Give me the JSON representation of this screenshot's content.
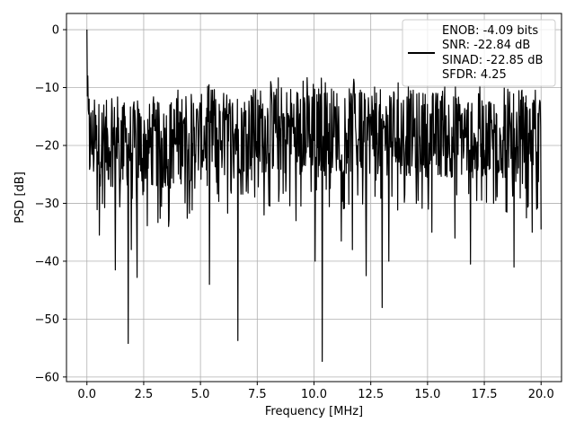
{
  "chart_data": {
    "type": "line",
    "title": "",
    "xlabel": "Frequency [MHz]",
    "ylabel": "PSD [dB]",
    "xlim": [
      -0.9,
      20.9
    ],
    "ylim": [
      -60.8,
      2.8
    ],
    "xticks": [
      0.0,
      2.5,
      5.0,
      7.5,
      10.0,
      12.5,
      15.0,
      17.5,
      20.0
    ],
    "xtick_labels": [
      "0.0",
      "2.5",
      "5.0",
      "7.5",
      "10.0",
      "12.5",
      "15.0",
      "17.5",
      "20.0"
    ],
    "yticks": [
      0,
      -10,
      -20,
      -30,
      -40,
      -50,
      -60
    ],
    "ytick_labels": [
      "0",
      "−10",
      "−20",
      "−30",
      "−40",
      "−50",
      "−60"
    ],
    "grid": true,
    "legend_position": "top-right",
    "legend_entries": [
      "ENOB: -4.09 bits",
      "SNR: -22.84 dB",
      "SINAD: -22.85 dB",
      "SFDR: 4.25"
    ],
    "line_color": "#000000",
    "series": [
      {
        "x_start": 0.0,
        "x_end": 20.0,
        "points": 1024,
        "band_center": [
          [
            0.0,
            -19.5
          ],
          [
            3.0,
            -20.0
          ],
          [
            6.0,
            -18.0
          ],
          [
            9.0,
            -17.0
          ],
          [
            12.0,
            -17.5
          ],
          [
            15.0,
            -18.0
          ],
          [
            18.0,
            -18.5
          ],
          [
            20.0,
            -19.0
          ]
        ],
        "spikes": [
          [
            0.0,
            0.0
          ],
          [
            0.04,
            -8.0
          ],
          [
            0.1,
            -12.0
          ]
        ],
        "dips": [
          [
            0.55,
            -35.5
          ],
          [
            1.25,
            -41.5
          ],
          [
            1.82,
            -54.2
          ],
          [
            1.95,
            -38.0
          ],
          [
            2.2,
            -42.8
          ],
          [
            3.6,
            -34.0
          ],
          [
            5.4,
            -44.0
          ],
          [
            6.64,
            -53.7
          ],
          [
            7.8,
            -32.0
          ],
          [
            9.2,
            -33.0
          ],
          [
            10.05,
            -40.0
          ],
          [
            10.36,
            -57.3
          ],
          [
            11.2,
            -36.5
          ],
          [
            11.7,
            -38.0
          ],
          [
            12.3,
            -42.5
          ],
          [
            13.0,
            -48.0
          ],
          [
            13.3,
            -40.0
          ],
          [
            14.5,
            -30.0
          ],
          [
            15.2,
            -35.0
          ],
          [
            16.2,
            -36.0
          ],
          [
            16.9,
            -40.5
          ],
          [
            17.9,
            -30.0
          ],
          [
            18.8,
            -41.0
          ],
          [
            19.6,
            -35.0
          ],
          [
            20.0,
            -34.5
          ]
        ]
      }
    ]
  }
}
